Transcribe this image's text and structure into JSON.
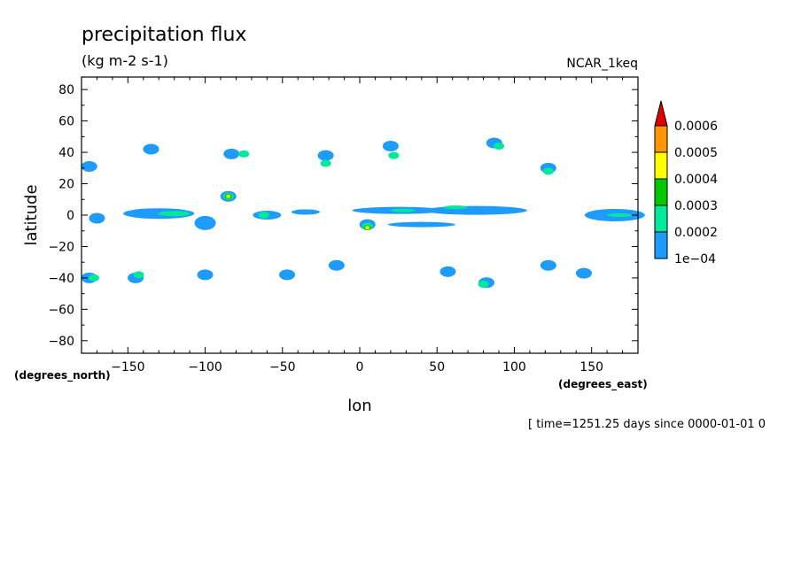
{
  "chart_data": {
    "type": "heatmap",
    "title": "precipitation flux",
    "units": "(kg m-2 s-1)",
    "dataset": "NCAR_1keq",
    "xlabel": "lon",
    "ylabel": "latitude",
    "x_units": "(degrees_east)",
    "y_units": "(degrees_north)",
    "xlim": [
      -180,
      180
    ],
    "ylim": [
      -88,
      88
    ],
    "x_ticks": [
      -150,
      -100,
      -50,
      0,
      50,
      100,
      150
    ],
    "y_ticks": [
      80,
      60,
      40,
      20,
      0,
      -20,
      -40,
      -60,
      -80
    ],
    "colorbar": {
      "levels": [
        0.0001,
        0.0002,
        0.0003,
        0.0004,
        0.0005,
        0.0006
      ],
      "labels": [
        "1e-04",
        "0.0002",
        "0.0003",
        "0.0004",
        "0.0005",
        "0.0006"
      ],
      "colors": [
        "#1e9bff",
        "#00e89a",
        "#00c800",
        "#ffff00",
        "#ff9600",
        "#e10000"
      ],
      "extend": "max"
    },
    "time_label": "[ time=1251.25 days since 0000-01-01 0",
    "cells": [
      {
        "lon": -135,
        "lat": 42,
        "level": 1
      },
      {
        "lon": -83,
        "lat": 39,
        "level": 1
      },
      {
        "lon": -75,
        "lat": 39,
        "level": 2
      },
      {
        "lon": -22,
        "lat": 38,
        "level": 1
      },
      {
        "lon": -22,
        "lat": 33,
        "level": 2
      },
      {
        "lon": 20,
        "lat": 44,
        "level": 1
      },
      {
        "lon": 22,
        "lat": 38,
        "level": 2
      },
      {
        "lon": 87,
        "lat": 46,
        "level": 1
      },
      {
        "lon": 90,
        "lat": 44,
        "level": 2
      },
      {
        "lon": 122,
        "lat": 30,
        "level": 1
      },
      {
        "lon": 122,
        "lat": 28,
        "level": 2
      },
      {
        "lon": -175,
        "lat": 31,
        "level": 1
      },
      {
        "lon": -85,
        "lat": 12,
        "level": 1
      },
      {
        "lon": -85,
        "lat": 12,
        "level": 2
      },
      {
        "lon": -85,
        "lat": 12,
        "level": 3
      },
      {
        "lon": -85,
        "lat": 12,
        "level": 4
      },
      {
        "lon": -170,
        "lat": -2,
        "level": 1
      },
      {
        "lon": -130,
        "lat": 1,
        "level": 1
      },
      {
        "lon": -120,
        "lat": 1,
        "level": 2
      },
      {
        "lon": -100,
        "lat": -5,
        "level": 1
      },
      {
        "lon": -60,
        "lat": 0,
        "level": 1
      },
      {
        "lon": -62,
        "lat": 0,
        "level": 2
      },
      {
        "lon": -35,
        "lat": 2,
        "level": 1
      },
      {
        "lon": 25,
        "lat": 3,
        "level": 1
      },
      {
        "lon": 28,
        "lat": 3,
        "level": 2
      },
      {
        "lon": 5,
        "lat": -6,
        "level": 1
      },
      {
        "lon": 5,
        "lat": -7,
        "level": 2
      },
      {
        "lon": 5,
        "lat": -8,
        "level": 3
      },
      {
        "lon": 5,
        "lat": -8,
        "level": 4
      },
      {
        "lon": 40,
        "lat": -6,
        "level": 1
      },
      {
        "lon": 75,
        "lat": 3,
        "level": 1
      },
      {
        "lon": 62,
        "lat": 5,
        "level": 2
      },
      {
        "lon": 165,
        "lat": 0,
        "level": 1
      },
      {
        "lon": 168,
        "lat": 0,
        "level": 2
      },
      {
        "lon": -175,
        "lat": -40,
        "level": 1
      },
      {
        "lon": -172,
        "lat": -40,
        "level": 2
      },
      {
        "lon": -145,
        "lat": -40,
        "level": 1
      },
      {
        "lon": -143,
        "lat": -38,
        "level": 2
      },
      {
        "lon": -100,
        "lat": -38,
        "level": 1
      },
      {
        "lon": -47,
        "lat": -38,
        "level": 1
      },
      {
        "lon": -15,
        "lat": -32,
        "level": 1
      },
      {
        "lon": 57,
        "lat": -36,
        "level": 1
      },
      {
        "lon": 82,
        "lat": -43,
        "level": 1
      },
      {
        "lon": 80,
        "lat": -44,
        "level": 2
      },
      {
        "lon": 122,
        "lat": -32,
        "level": 1
      },
      {
        "lon": 145,
        "lat": -37,
        "level": 1
      }
    ]
  }
}
